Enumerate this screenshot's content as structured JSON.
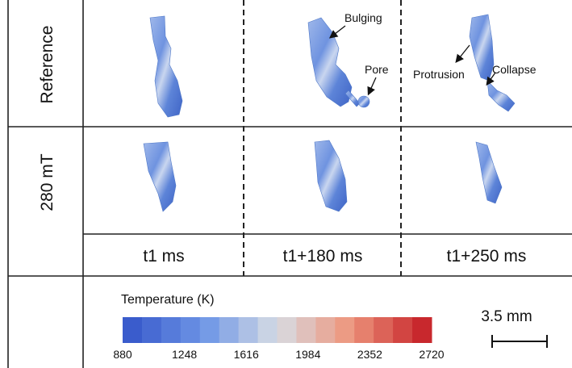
{
  "row_labels": [
    "Reference",
    "280 mT"
  ],
  "column_labels": [
    "t1 ms",
    "t1+180 ms",
    "t1+250 ms"
  ],
  "annotations": [
    "Bulging",
    "Pore",
    "Protrusion",
    "Collapse"
  ],
  "colorbar": {
    "title": "Temperature (K)",
    "ticks": [
      880,
      1248,
      1616,
      1984,
      2352,
      2720
    ]
  },
  "scale_bar": "3.5 mm"
}
